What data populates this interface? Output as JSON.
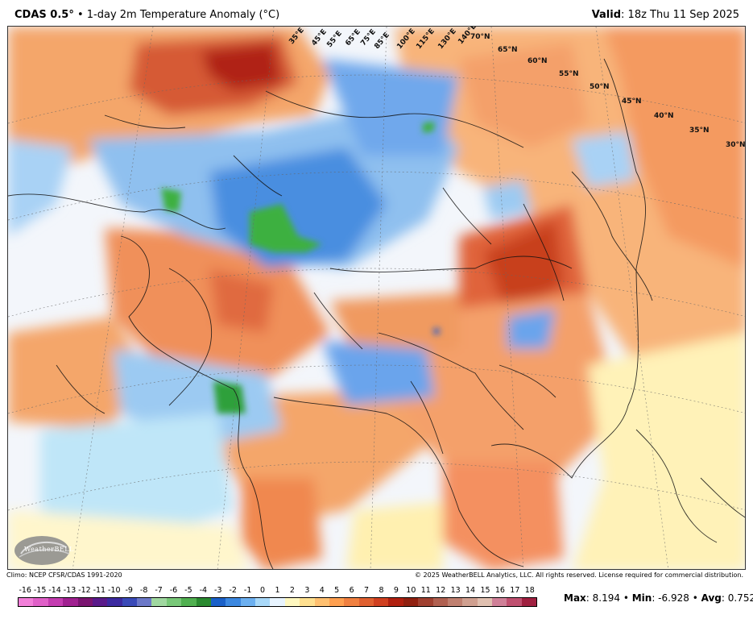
{
  "header": {
    "model": "CDAS 0.5",
    "degree": "°",
    "bullet": "•",
    "title": "1-day 2m Temperature Anomaly (",
    "unit": "°C",
    "title_end": ")",
    "valid_label": "Valid",
    "valid_value": ": 18z Thu 11 Sep 2025"
  },
  "map": {
    "latitude_labels": [
      "70°N",
      "65°N",
      "60°N",
      "55°N",
      "50°N",
      "45°N",
      "40°N",
      "35°N",
      "30°N"
    ],
    "longitude_labels": [
      "35°E",
      "45°E",
      "55°E",
      "65°E",
      "75°E",
      "85°E",
      "100°E",
      "115°E",
      "130°E",
      "140°E"
    ],
    "logo_text": "WeatherBELL"
  },
  "footer": {
    "climo": "Climo: NCEP CFSR/CDAS 1991-2020",
    "copyright": "© 2025 WeatherBELL Analytics, LLC. All rights reserved. License required for commercial distribution."
  },
  "colorbar": {
    "ticks": [
      "-16",
      "-15",
      "-14",
      "-13",
      "-12",
      "-11",
      "-10",
      "-9",
      "-8",
      "-7",
      "-6",
      "-5",
      "-4",
      "-3",
      "-2",
      "-1",
      "0",
      "1",
      "2",
      "3",
      "4",
      "5",
      "6",
      "7",
      "8",
      "9",
      "10",
      "11",
      "12",
      "13",
      "14",
      "15",
      "16",
      "17",
      "18"
    ],
    "colors": [
      "#f27fd9",
      "#e060c8",
      "#c43cb0",
      "#a02090",
      "#7a1470",
      "#5a1a8a",
      "#3c2aa0",
      "#3a4ab8",
      "#6c78c8",
      "#a0d8a0",
      "#78c878",
      "#50b050",
      "#2a8a30",
      "#1a60c8",
      "#3c88e0",
      "#6cb0f0",
      "#a8d8f8",
      "#e8f4ff",
      "#fff8c0",
      "#ffe090",
      "#ffc070",
      "#ffa050",
      "#f08040",
      "#e06030",
      "#d04020",
      "#b02010",
      "#902010",
      "#a04030",
      "#b06050",
      "#c08070",
      "#d0a090",
      "#e0c0b0",
      "#d08098",
      "#c05070",
      "#a02040"
    ]
  },
  "stats": {
    "max_label": "Max",
    "max_value": ": 8.194",
    "sep1": " • ",
    "min_label": "Min",
    "min_value": ": -6.928",
    "sep2": " • ",
    "avg_label": "Avg",
    "avg_value": ": 0.752"
  }
}
